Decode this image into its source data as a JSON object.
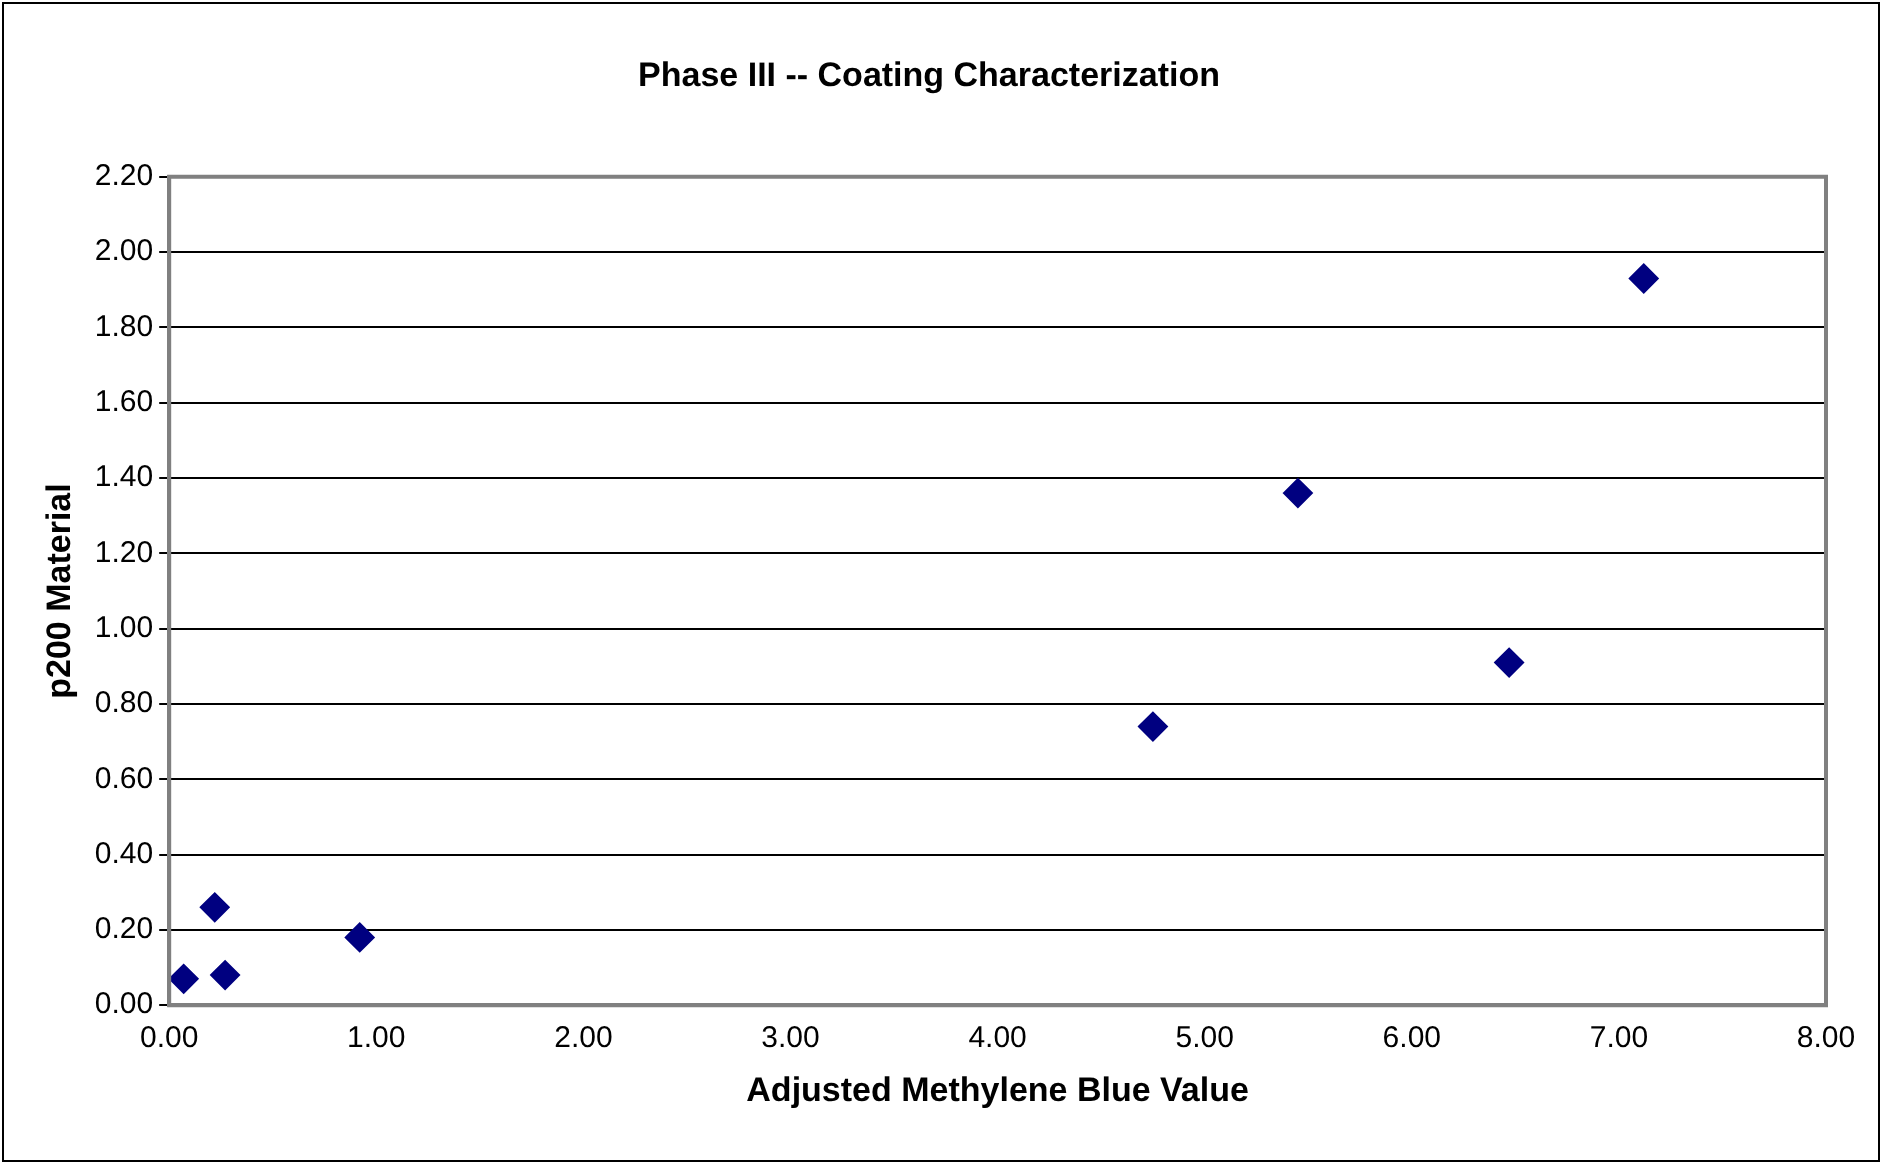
{
  "chart_data": {
    "type": "scatter",
    "title": "Phase III -- Coating Characterization",
    "xlabel": "Adjusted Methylene Blue Value",
    "ylabel": "p200 Material",
    "x": [
      0.07,
      0.22,
      0.27,
      0.92,
      4.75,
      5.45,
      6.47,
      7.12
    ],
    "series": [
      {
        "color": "#000080",
        "values": [
          0.07,
          0.26,
          0.08,
          0.18,
          0.74,
          1.36,
          0.91,
          1.93
        ]
      }
    ],
    "xlim": [
      0,
      8
    ],
    "xticks": [
      {
        "value": 0,
        "label": "0.00"
      },
      {
        "value": 1,
        "label": "1.00"
      },
      {
        "value": 2,
        "label": "2.00"
      },
      {
        "value": 3,
        "label": "3.00"
      },
      {
        "value": 4,
        "label": "4.00"
      },
      {
        "value": 5,
        "label": "5.00"
      },
      {
        "value": 6,
        "label": "6.00"
      },
      {
        "value": 7,
        "label": "7.00"
      },
      {
        "value": 8,
        "label": "8.00"
      }
    ],
    "ylim": [
      0,
      2.2
    ],
    "yticks": [
      {
        "value": 0,
        "label": "0.00"
      },
      {
        "value": 0.2,
        "label": "0.20"
      },
      {
        "value": 0.4,
        "label": "0.40"
      },
      {
        "value": 0.6,
        "label": "0.60"
      },
      {
        "value": 0.8,
        "label": "0.80"
      },
      {
        "value": 1,
        "label": "1.00"
      },
      {
        "value": 1.2,
        "label": "1.20"
      },
      {
        "value": 1.4,
        "label": "1.40"
      },
      {
        "value": 1.6,
        "label": "1.60"
      },
      {
        "value": 1.8,
        "label": "1.80"
      },
      {
        "value": 2,
        "label": "2.00"
      },
      {
        "value": 2.2,
        "label": "2.20"
      }
    ],
    "grid": "y",
    "legend": false,
    "marker": "diamond"
  }
}
